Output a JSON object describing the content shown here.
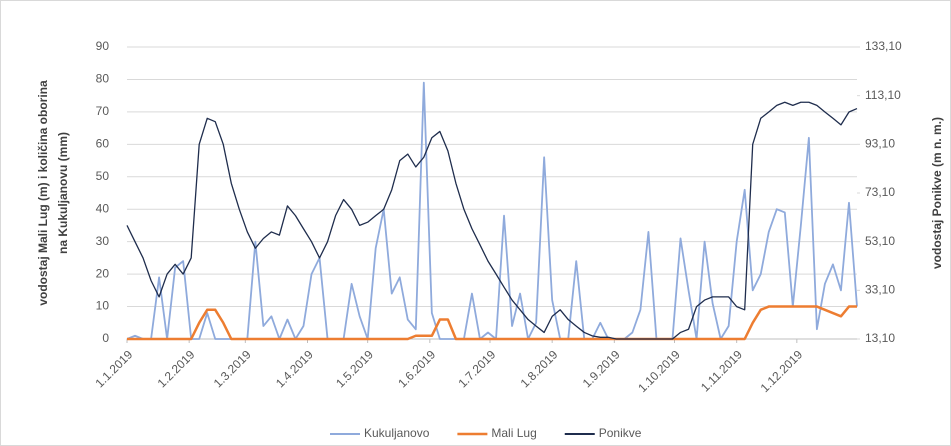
{
  "chart_data": {
    "type": "line",
    "ylabel": [
      "vodostaj Mali Lug (m) i količina oborina",
      "na Kukuljanovu (mm)"
    ],
    "y2label": "vodostaj Ponikve (m n. m.)",
    "x": [
      "1.1.2019",
      "5.1.2019",
      "9.1.2019",
      "13.1.2019",
      "17.1.2019",
      "21.1.2019",
      "25.1.2019",
      "29.1.2019",
      "2.2.2019",
      "6.2.2019",
      "10.2.2019",
      "14.2.2019",
      "18.2.2019",
      "22.2.2019",
      "26.2.2019",
      "2.3.2019",
      "6.3.2019",
      "10.3.2019",
      "14.3.2019",
      "18.3.2019",
      "22.3.2019",
      "26.3.2019",
      "30.3.2019",
      "3.4.2019",
      "7.4.2019",
      "11.4.2019",
      "15.4.2019",
      "19.4.2019",
      "23.4.2019",
      "27.4.2019",
      "1.5.2019",
      "5.5.2019",
      "9.5.2019",
      "13.5.2019",
      "17.5.2019",
      "21.5.2019",
      "25.5.2019",
      "29.5.2019",
      "2.6.2019",
      "6.6.2019",
      "10.6.2019",
      "14.6.2019",
      "18.6.2019",
      "22.6.2019",
      "26.6.2019",
      "30.6.2019",
      "4.7.2019",
      "8.7.2019",
      "12.7.2019",
      "16.7.2019",
      "20.7.2019",
      "24.7.2019",
      "28.7.2019",
      "1.8.2019",
      "5.8.2019",
      "9.8.2019",
      "13.8.2019",
      "17.8.2019",
      "21.8.2019",
      "25.8.2019",
      "29.8.2019",
      "2.9.2019",
      "6.9.2019",
      "10.9.2019",
      "14.9.2019",
      "18.9.2019",
      "22.9.2019",
      "26.9.2019",
      "30.9.2019",
      "4.10.2019",
      "8.10.2019",
      "12.10.2019",
      "16.10.2019",
      "20.10.2019",
      "24.10.2019",
      "28.10.2019",
      "1.11.2019",
      "5.11.2019",
      "9.11.2019",
      "13.11.2019",
      "17.11.2019",
      "21.11.2019",
      "25.11.2019",
      "29.11.2019",
      "3.12.2019",
      "7.12.2019",
      "11.12.2019",
      "15.12.2019",
      "19.12.2019",
      "23.12.2019",
      "27.12.2019",
      "31.12.2019"
    ],
    "series": [
      {
        "name": "Kukuljanovo",
        "color": "#8faadc",
        "axis": "y",
        "values": [
          0,
          1,
          0,
          0,
          19,
          0,
          22,
          24,
          0,
          0,
          8,
          0,
          0,
          0,
          0,
          0,
          30,
          4,
          7,
          0,
          6,
          0,
          4,
          20,
          25,
          0,
          0,
          0,
          17,
          7,
          0,
          28,
          40,
          14,
          19,
          6,
          3,
          79,
          8,
          0,
          0,
          0,
          0,
          14,
          0,
          2,
          0,
          38,
          4,
          14,
          0,
          5,
          56,
          12,
          0,
          0,
          24,
          0,
          0,
          5,
          0,
          0,
          0,
          2,
          9,
          33,
          0,
          0,
          0,
          31,
          15,
          0,
          30,
          11,
          0,
          4,
          30,
          46,
          15,
          20,
          33,
          40,
          39,
          10,
          35,
          62,
          3,
          17,
          23,
          15,
          42,
          10
        ]
      },
      {
        "name": "Mali Lug",
        "color": "#ed7d31",
        "axis": "y",
        "values": [
          0,
          0,
          0,
          0,
          0,
          0,
          0,
          0,
          0,
          5,
          9,
          9,
          5,
          0,
          0,
          0,
          0,
          0,
          0,
          0,
          0,
          0,
          0,
          0,
          0,
          0,
          0,
          0,
          0,
          0,
          0,
          0,
          0,
          0,
          0,
          0,
          1,
          1,
          1,
          6,
          6,
          0,
          0,
          0,
          0,
          0,
          0,
          0,
          0,
          0,
          0,
          0,
          0,
          0,
          0,
          0,
          0,
          0,
          0,
          0,
          0,
          0,
          0,
          0,
          0,
          0,
          0,
          0,
          0,
          0,
          0,
          0,
          0,
          0,
          0,
          0,
          0,
          0,
          5,
          9,
          10,
          10,
          10,
          10,
          10,
          10,
          10,
          9,
          8,
          7,
          10,
          10
        ]
      },
      {
        "name": "Ponikve",
        "color": "#1f2d4d",
        "axis": "y2",
        "values": [
          59.8,
          53.1,
          46.4,
          37.1,
          30.4,
          39.8,
          43.8,
          39.8,
          46.4,
          93.1,
          103.8,
          102.4,
          93.1,
          77.1,
          66.4,
          57.1,
          50.4,
          54.4,
          57.1,
          55.8,
          67.8,
          63.8,
          58.4,
          53.1,
          46.4,
          53.1,
          63.8,
          70.4,
          66.4,
          59.8,
          61.1,
          63.8,
          66.4,
          74.4,
          86.4,
          89.1,
          83.8,
          87.8,
          95.8,
          98.4,
          90.4,
          77.1,
          66.4,
          58.4,
          51.8,
          45.1,
          39.8,
          34.4,
          29.1,
          25.1,
          21.1,
          18.4,
          15.8,
          22.4,
          25.1,
          21.1,
          18.4,
          15.8,
          14.4,
          13.8,
          13.8,
          13.1,
          13.1,
          13.1,
          13.1,
          13.1,
          13.1,
          13.1,
          13.1,
          15.8,
          17.1,
          26.4,
          29.1,
          30.4,
          30.4,
          30.4,
          26.4,
          25.1,
          93.1,
          103.8,
          106.4,
          109.1,
          110.4,
          109.1,
          110.4,
          110.4,
          109.1,
          106.4,
          103.8,
          101.1,
          106.4,
          107.8
        ]
      }
    ],
    "xlim": [
      "1.1.2019",
      "31.12.2019"
    ],
    "xticks": [
      "1.1.2019",
      "1.2.2019",
      "1.3.2019",
      "1.4.2019",
      "1.5.2019",
      "1.6.2019",
      "1.7.2019",
      "1.8.2019",
      "1.9.2019",
      "1.10.2019",
      "1.11.2019",
      "1.12.2019"
    ],
    "ylim": [
      0,
      90
    ],
    "yticks": [
      0,
      10,
      20,
      30,
      40,
      50,
      60,
      70,
      80,
      90
    ],
    "y2lim": [
      13.1,
      133.1
    ],
    "y2ticks": [
      {
        "value": 13.1,
        "label": "13,10"
      },
      {
        "value": 33.1,
        "label": "33,10"
      },
      {
        "value": 53.1,
        "label": "53,10"
      },
      {
        "value": 73.1,
        "label": "73,10"
      },
      {
        "value": 93.1,
        "label": "93,10"
      },
      {
        "value": 113.1,
        "label": "113,10"
      },
      {
        "value": 133.1,
        "label": "133,10"
      }
    ],
    "grid": true,
    "legend": "bottom"
  }
}
